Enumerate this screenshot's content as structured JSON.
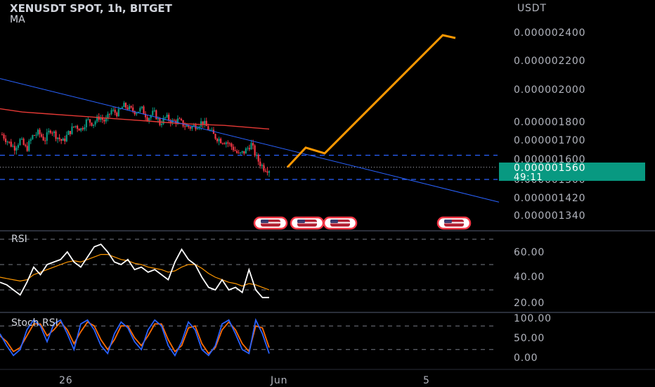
{
  "header": {
    "title": "XENUSDT SPOT, 1h, BITGET",
    "indicator": "MA",
    "currency": "USDT"
  },
  "price_panel": {
    "ticks": [
      {
        "label": "0.000002400",
        "value": 2400
      },
      {
        "label": "0.000002200",
        "value": 2200
      },
      {
        "label": "0.000002000",
        "value": 2000
      },
      {
        "label": "0.000001800",
        "value": 1800
      },
      {
        "label": "0.000001700",
        "value": 1700
      },
      {
        "label": "0.000001600",
        "value": 1600
      },
      {
        "label": "0.000001500",
        "value": 1500
      },
      {
        "label": "0.000001420",
        "value": 1420
      },
      {
        "label": "0.000001340",
        "value": 1340
      }
    ],
    "last_price": "0.000001560",
    "countdown": "49:11",
    "badge_color": "#089981"
  },
  "rsi_panel": {
    "label": "RSI",
    "ticks": [
      {
        "label": "60.00",
        "value": 60
      },
      {
        "label": "40.00",
        "value": 40
      },
      {
        "label": "20.00",
        "value": 20
      }
    ]
  },
  "stoch_panel": {
    "label": "Stoch RSI",
    "ticks": [
      {
        "label": "100.00",
        "value": 100
      },
      {
        "label": "50.00",
        "value": 50
      },
      {
        "label": "0.00",
        "value": 0
      }
    ]
  },
  "time_axis": {
    "labels": [
      "26",
      "Jun",
      "5"
    ]
  },
  "events": {
    "icon": "us-flag-icon",
    "count": 4
  },
  "colors": {
    "up": "#089981",
    "down": "#f23645",
    "ma": "#e53935",
    "trendline": "#2962ff",
    "projection": "#ff9800",
    "rsi_line": "#ffffff",
    "rsi_ma": "#ff9800",
    "stoch_k": "#2962ff",
    "stoch_d": "#ff6d00",
    "dashed_level": "#2962ff"
  },
  "chart_data": {
    "type": "candlestick",
    "symbol": "XENUSDT SPOT, 1h, BITGET",
    "price_unit": "1e-9 USDT",
    "ylim": [
      1300,
      2500
    ],
    "levels": {
      "upper_dashed": 1620,
      "lower_dashed": 1500,
      "last_price": 1560
    },
    "candle_close_path": [
      1730,
      1690,
      1660,
      1700,
      1650,
      1720,
      1740,
      1700,
      1760,
      1720,
      1690,
      1740,
      1780,
      1760,
      1810,
      1790,
      1830,
      1800,
      1870,
      1850,
      1900,
      1880,
      1860,
      1880,
      1820,
      1860,
      1790,
      1830,
      1800,
      1810,
      1780,
      1770,
      1780,
      1800,
      1760,
      1720,
      1700,
      1690,
      1660,
      1620,
      1640,
      1680,
      1600,
      1560,
      1550
    ],
    "ma_series": [
      1880,
      1860,
      1850,
      1840,
      1830,
      1820,
      1810,
      1800,
      1790,
      1785,
      1780,
      1770,
      1760
    ],
    "trendline": {
      "from": 2075,
      "to": 1400
    },
    "projection_path": [
      1560,
      1660,
      1630,
      2380,
      2360
    ],
    "rsi_series": [
      36,
      34,
      30,
      26,
      36,
      48,
      42,
      50,
      52,
      54,
      60,
      52,
      48,
      56,
      64,
      66,
      60,
      52,
      50,
      54,
      46,
      48,
      44,
      46,
      42,
      38,
      52,
      62,
      54,
      50,
      40,
      32,
      30,
      38,
      30,
      32,
      28,
      46,
      30,
      24,
      24
    ],
    "rsi_ma_series": [
      40,
      39,
      38,
      37,
      38,
      42,
      44,
      46,
      48,
      50,
      52,
      53,
      52,
      54,
      56,
      58,
      58,
      56,
      54,
      53,
      51,
      50,
      48,
      47,
      46,
      44,
      45,
      48,
      50,
      50,
      47,
      43,
      40,
      38,
      36,
      35,
      33,
      35,
      34,
      32,
      30
    ],
    "stoch_k_series": [
      60,
      30,
      5,
      20,
      70,
      95,
      80,
      40,
      85,
      95,
      60,
      20,
      85,
      95,
      70,
      30,
      10,
      60,
      90,
      75,
      40,
      20,
      70,
      95,
      80,
      30,
      5,
      40,
      90,
      70,
      20,
      5,
      30,
      85,
      95,
      60,
      20,
      10,
      95,
      60,
      10
    ],
    "stoch_d_series": [
      55,
      40,
      15,
      25,
      55,
      85,
      85,
      55,
      70,
      90,
      70,
      35,
      65,
      90,
      80,
      45,
      20,
      45,
      80,
      80,
      50,
      30,
      55,
      85,
      85,
      45,
      15,
      30,
      75,
      80,
      35,
      10,
      25,
      70,
      90,
      70,
      35,
      15,
      80,
      75,
      25
    ]
  }
}
